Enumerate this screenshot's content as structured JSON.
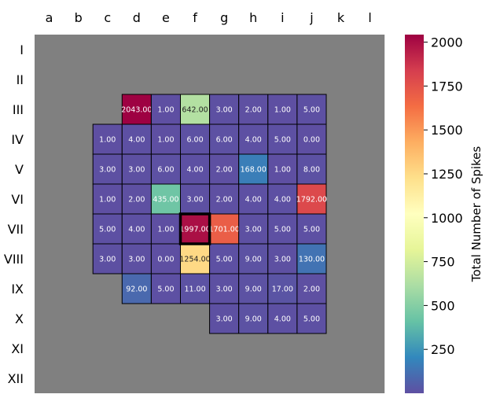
{
  "chart_data": {
    "type": "heatmap",
    "columns": [
      "a",
      "b",
      "c",
      "d",
      "e",
      "f",
      "g",
      "h",
      "i",
      "j",
      "k",
      "l"
    ],
    "rows": [
      "I",
      "II",
      "III",
      "IV",
      "V",
      "VI",
      "VII",
      "VIII",
      "IX",
      "X",
      "XI",
      "XII"
    ],
    "cells": [
      {
        "row": "III",
        "col": "d",
        "value": 2043
      },
      {
        "row": "III",
        "col": "e",
        "value": 1
      },
      {
        "row": "III",
        "col": "f",
        "value": 642
      },
      {
        "row": "III",
        "col": "g",
        "value": 3
      },
      {
        "row": "III",
        "col": "h",
        "value": 2
      },
      {
        "row": "III",
        "col": "i",
        "value": 1
      },
      {
        "row": "III",
        "col": "j",
        "value": 5
      },
      {
        "row": "IV",
        "col": "c",
        "value": 1
      },
      {
        "row": "IV",
        "col": "d",
        "value": 4
      },
      {
        "row": "IV",
        "col": "e",
        "value": 1
      },
      {
        "row": "IV",
        "col": "f",
        "value": 6
      },
      {
        "row": "IV",
        "col": "g",
        "value": 6
      },
      {
        "row": "IV",
        "col": "h",
        "value": 4
      },
      {
        "row": "IV",
        "col": "i",
        "value": 5
      },
      {
        "row": "IV",
        "col": "j",
        "value": 0
      },
      {
        "row": "V",
        "col": "c",
        "value": 3
      },
      {
        "row": "V",
        "col": "d",
        "value": 3
      },
      {
        "row": "V",
        "col": "e",
        "value": 6
      },
      {
        "row": "V",
        "col": "f",
        "value": 4
      },
      {
        "row": "V",
        "col": "g",
        "value": 2
      },
      {
        "row": "V",
        "col": "h",
        "value": 168
      },
      {
        "row": "V",
        "col": "i",
        "value": 1
      },
      {
        "row": "V",
        "col": "j",
        "value": 8
      },
      {
        "row": "VI",
        "col": "c",
        "value": 1
      },
      {
        "row": "VI",
        "col": "d",
        "value": 2
      },
      {
        "row": "VI",
        "col": "e",
        "value": 435
      },
      {
        "row": "VI",
        "col": "f",
        "value": 3
      },
      {
        "row": "VI",
        "col": "g",
        "value": 2
      },
      {
        "row": "VI",
        "col": "h",
        "value": 4
      },
      {
        "row": "VI",
        "col": "i",
        "value": 4
      },
      {
        "row": "VI",
        "col": "j",
        "value": 1792
      },
      {
        "row": "VII",
        "col": "c",
        "value": 5
      },
      {
        "row": "VII",
        "col": "d",
        "value": 4
      },
      {
        "row": "VII",
        "col": "e",
        "value": 1
      },
      {
        "row": "VII",
        "col": "f",
        "value": 1997,
        "highlight": true
      },
      {
        "row": "VII",
        "col": "g",
        "value": 1701
      },
      {
        "row": "VII",
        "col": "h",
        "value": 3
      },
      {
        "row": "VII",
        "col": "i",
        "value": 5
      },
      {
        "row": "VII",
        "col": "j",
        "value": 5
      },
      {
        "row": "VIII",
        "col": "c",
        "value": 3
      },
      {
        "row": "VIII",
        "col": "d",
        "value": 3
      },
      {
        "row": "VIII",
        "col": "e",
        "value": 0
      },
      {
        "row": "VIII",
        "col": "f",
        "value": 1254
      },
      {
        "row": "VIII",
        "col": "g",
        "value": 5
      },
      {
        "row": "VIII",
        "col": "h",
        "value": 9
      },
      {
        "row": "VIII",
        "col": "i",
        "value": 3
      },
      {
        "row": "VIII",
        "col": "j",
        "value": 130
      },
      {
        "row": "IX",
        "col": "d",
        "value": 92
      },
      {
        "row": "IX",
        "col": "e",
        "value": 5
      },
      {
        "row": "IX",
        "col": "f",
        "value": 11
      },
      {
        "row": "IX",
        "col": "g",
        "value": 3
      },
      {
        "row": "IX",
        "col": "h",
        "value": 9
      },
      {
        "row": "IX",
        "col": "i",
        "value": 17
      },
      {
        "row": "IX",
        "col": "j",
        "value": 2
      },
      {
        "row": "X",
        "col": "g",
        "value": 3
      },
      {
        "row": "X",
        "col": "h",
        "value": 9
      },
      {
        "row": "X",
        "col": "i",
        "value": 4
      },
      {
        "row": "X",
        "col": "j",
        "value": 5
      }
    ],
    "value_format_decimals": 2,
    "colorbar": {
      "label": "Total Number of Spikes",
      "colormap": "Spectral_r",
      "vmin": 0,
      "vmax": 2043,
      "ticks": [
        250,
        500,
        750,
        1000,
        1250,
        1500,
        1750,
        2000
      ]
    },
    "background_color": "#808080"
  }
}
